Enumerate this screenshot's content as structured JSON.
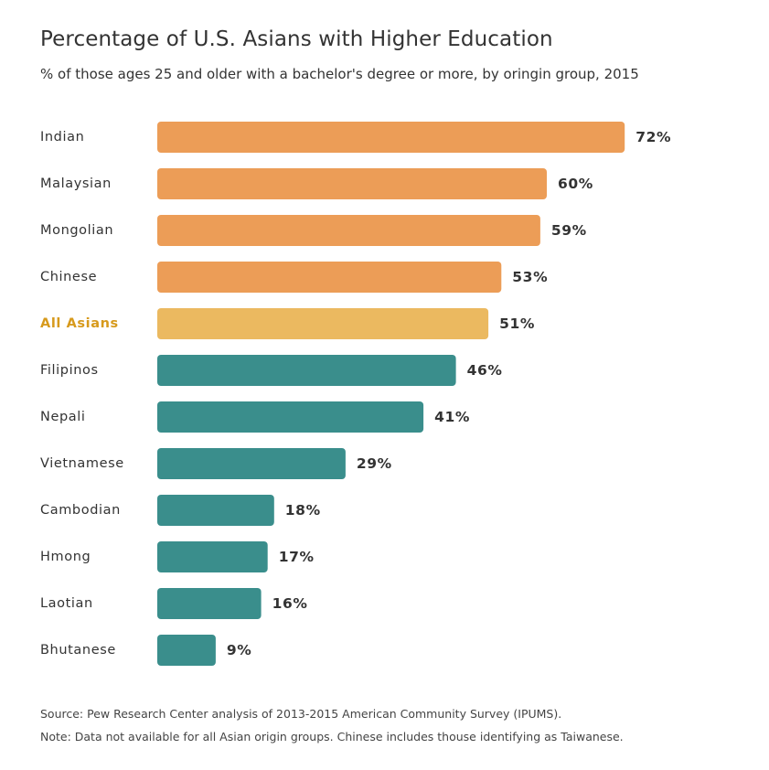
{
  "header": {
    "title": "Percentage of U.S. Asians with Higher Education",
    "subtitle": "% of those ages 25 and older with a bachelor's degree or more, by oringin group, 2015"
  },
  "footer": {
    "source": "Source: Pew Research Center analysis of 2013-2015 American Community Survey (IPUMS).",
    "note": "Note: Data not available for all Asian origin groups. Chinese includes thouse identifying as Taiwanese."
  },
  "colors": {
    "above_average": "#EC9D57",
    "all_asians": "#EBB960",
    "all_asians_label": "#D79A1C",
    "below_average": "#3A8E8C",
    "text": "#333333"
  },
  "chart_data": {
    "type": "bar",
    "orientation": "horizontal",
    "categories": [
      "Indian",
      "Malaysian",
      "Mongolian",
      "Chinese",
      "All Asians",
      "Filipinos",
      "Nepali",
      "Vietnamese",
      "Cambodian",
      "Hmong",
      "Laotian",
      "Bhutanese"
    ],
    "values": [
      72,
      60,
      59,
      53,
      51,
      46,
      41,
      29,
      18,
      17,
      16,
      9
    ],
    "value_labels": [
      "72%",
      "60%",
      "59%",
      "53%",
      "51%",
      "46%",
      "41%",
      "29%",
      "18%",
      "17%",
      "16%",
      "9%"
    ],
    "groups": [
      "above",
      "above",
      "above",
      "above",
      "all",
      "below",
      "below",
      "below",
      "below",
      "below",
      "below",
      "below"
    ],
    "unit": "%",
    "title": "Percentage of U.S. Asians with Higher Education",
    "grid": false,
    "legend": "none"
  }
}
